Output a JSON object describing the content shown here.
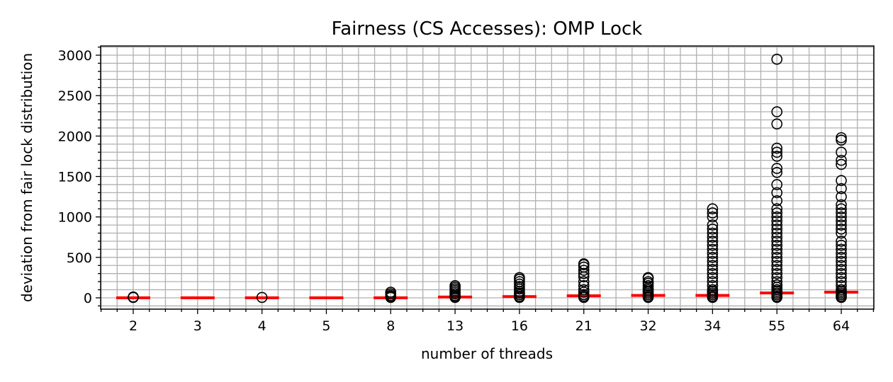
{
  "chart_data": {
    "type": "box",
    "title": "Fairness (CS Accesses): OMP Lock",
    "xlabel": "number of threads",
    "ylabel": "deviation from fair lock distribution",
    "categories": [
      "2",
      "3",
      "4",
      "5",
      "8",
      "13",
      "16",
      "21",
      "32",
      "34",
      "55",
      "64"
    ],
    "ylim": [
      -150,
      3100
    ],
    "yticks": [
      0,
      500,
      1000,
      1500,
      2000,
      2500,
      3000
    ],
    "y_minor_step": 100,
    "x_minor_per_category": 4,
    "grid": true,
    "median_color": "#ff0000",
    "medians": [
      0,
      0,
      0,
      0,
      0,
      10,
      15,
      25,
      30,
      30,
      60,
      70
    ],
    "fliers": [
      [
        5,
        10
      ],
      [],
      [
        5
      ],
      [],
      [
        5,
        15,
        30,
        50,
        70
      ],
      [
        5,
        15,
        30,
        50,
        70,
        90,
        110,
        130,
        150
      ],
      [
        5,
        20,
        40,
        60,
        80,
        110,
        140,
        170,
        200,
        230,
        250
      ],
      [
        5,
        20,
        40,
        70,
        100,
        150,
        200,
        260,
        300,
        340,
        380,
        410,
        420
      ],
      [
        5,
        20,
        40,
        60,
        80,
        100,
        120,
        150,
        180,
        200,
        240,
        250
      ],
      [
        5,
        20,
        40,
        60,
        80,
        100,
        150,
        200,
        250,
        300,
        350,
        400,
        450,
        500,
        550,
        600,
        650,
        700,
        750,
        800,
        850,
        900,
        1000,
        1050,
        1100
      ],
      [
        5,
        20,
        40,
        60,
        80,
        100,
        130,
        160,
        200,
        250,
        300,
        350,
        400,
        450,
        500,
        550,
        600,
        650,
        700,
        750,
        800,
        850,
        900,
        950,
        1000,
        1050,
        1100,
        1200,
        1300,
        1400,
        1550,
        1600,
        1750,
        1800,
        1850,
        2150,
        2300,
        2950
      ],
      [
        5,
        20,
        40,
        60,
        80,
        100,
        150,
        200,
        250,
        300,
        350,
        400,
        450,
        500,
        550,
        600,
        650,
        700,
        800,
        850,
        900,
        950,
        1000,
        1050,
        1100,
        1150,
        1250,
        1350,
        1450,
        1650,
        1700,
        1800,
        1950,
        1980
      ]
    ]
  }
}
